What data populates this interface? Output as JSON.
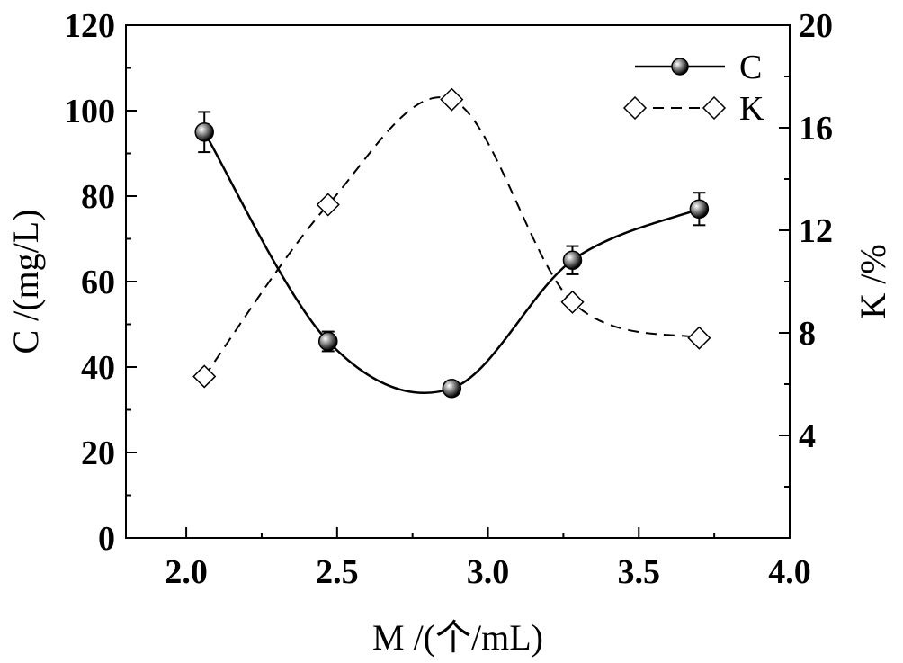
{
  "chart_data": {
    "type": "line",
    "xlabel": "M /(个/mL)",
    "ylabel": "C /(mg/L)",
    "y2label": "K /%",
    "xlim": [
      1.8,
      4.0
    ],
    "ylim": [
      0,
      120
    ],
    "y2lim": [
      0,
      20
    ],
    "xticks": [
      "2.0",
      "2.5",
      "3.0",
      "3.5",
      "4.0"
    ],
    "yticks": [
      "0",
      "20",
      "40",
      "60",
      "80",
      "100",
      "120"
    ],
    "y2ticks": [
      "4",
      "8",
      "12",
      "16",
      "20"
    ],
    "grid": false,
    "legend_position": "top-right",
    "series": [
      {
        "name": "C",
        "axis": "left",
        "marker": "sphere",
        "line_style": "solid",
        "x": [
          2.06,
          2.47,
          2.88,
          3.28,
          3.7
        ],
        "y": [
          95,
          46,
          35,
          65,
          77
        ],
        "error": [
          4.7,
          2.3,
          1.5,
          3.3,
          3.8
        ]
      },
      {
        "name": "K",
        "axis": "right",
        "marker": "diamond",
        "line_style": "dashed",
        "x": [
          2.06,
          2.47,
          2.88,
          3.28,
          3.7
        ],
        "y": [
          6.3,
          13.0,
          17.1,
          9.2,
          7.8
        ]
      }
    ]
  }
}
